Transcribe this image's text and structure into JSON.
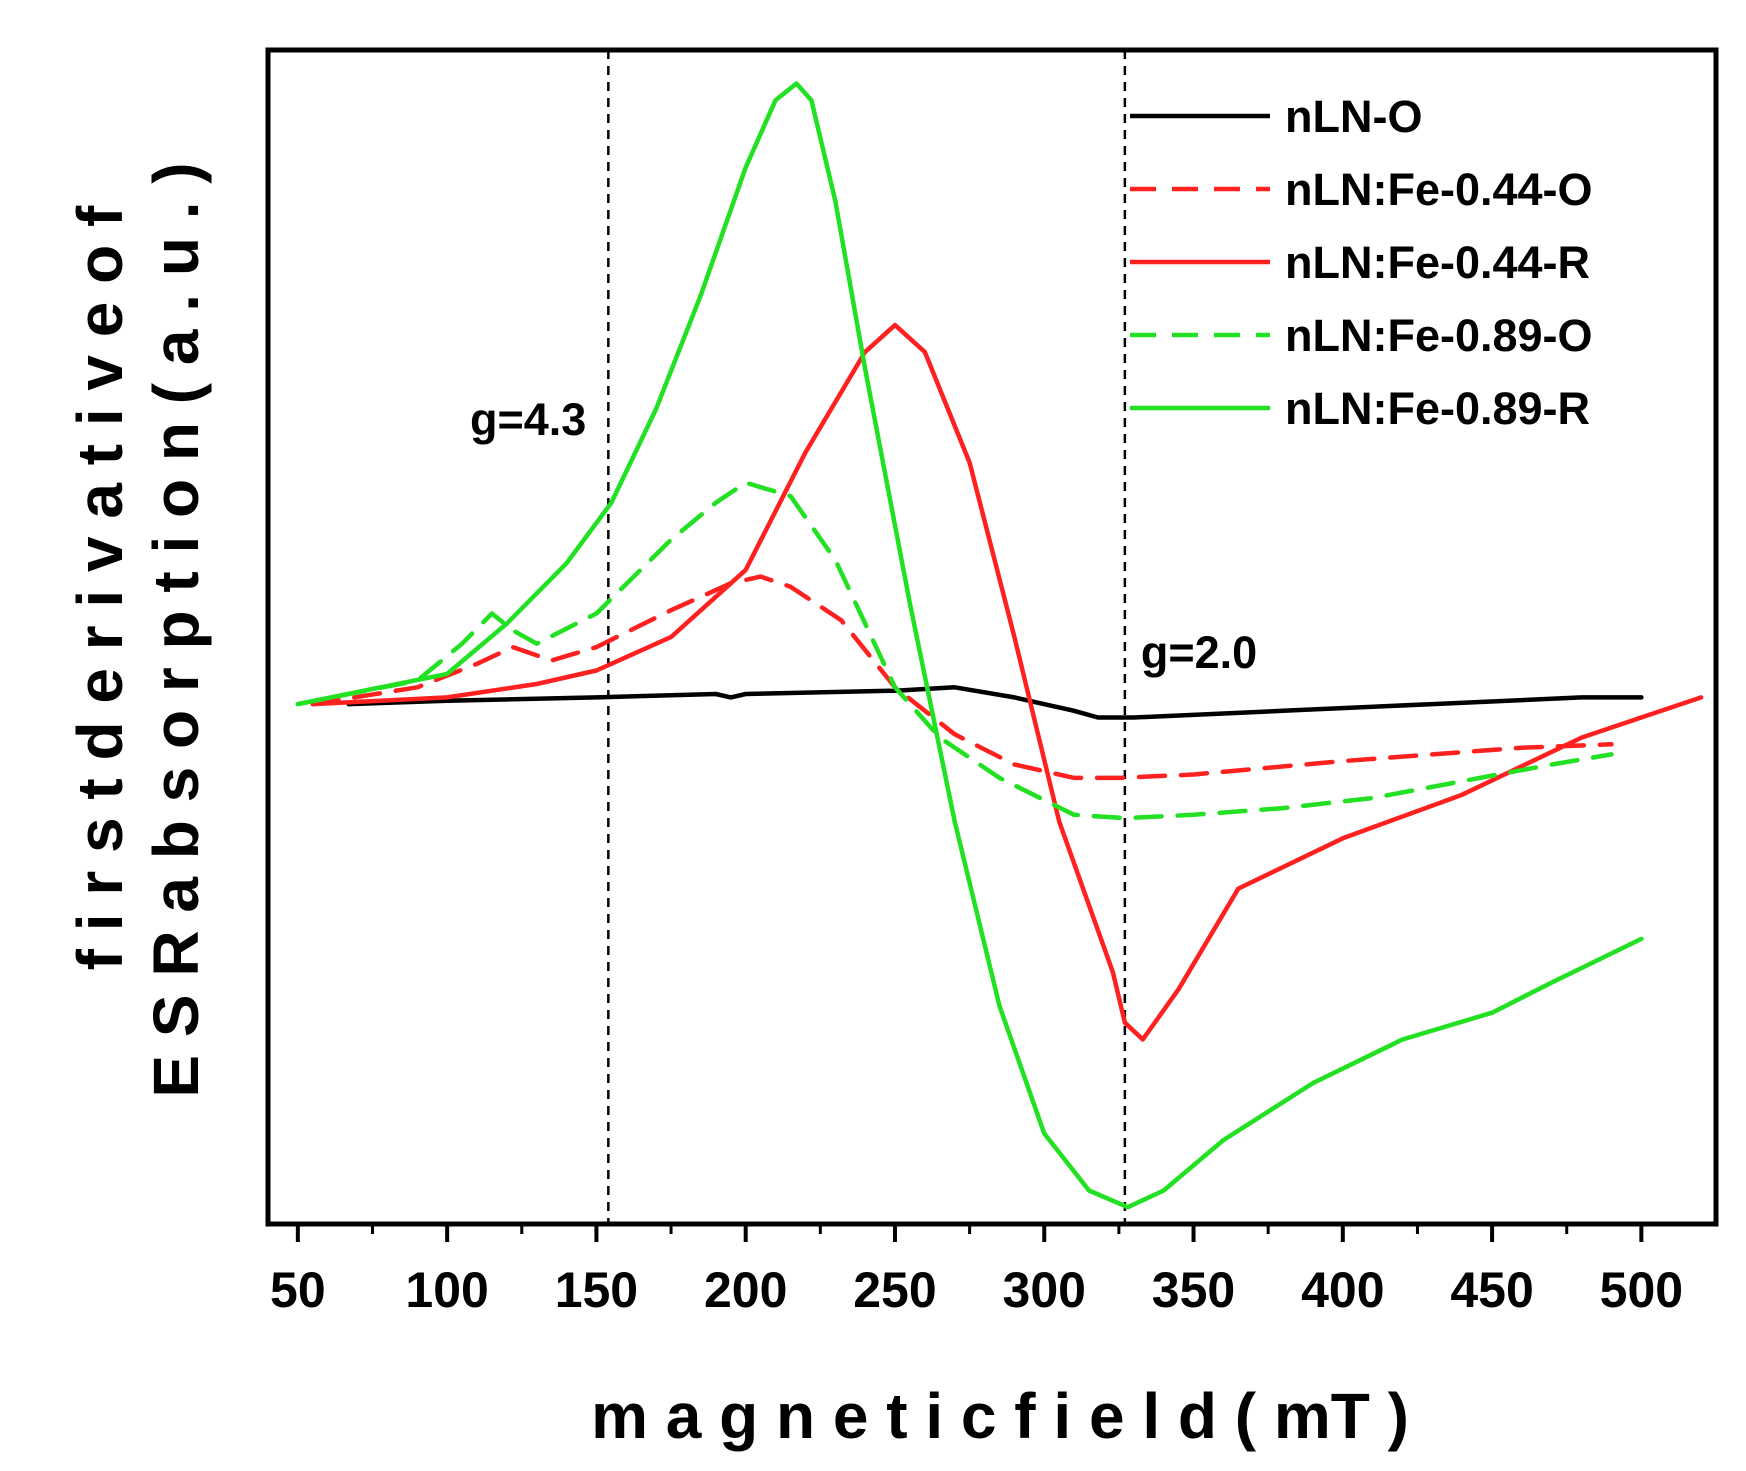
{
  "chart_data": {
    "type": "line",
    "title": "",
    "xlabel": "m a g n e t i c  f i e l d ( mT )",
    "ylabel_line1": "f i r s t  d e r i v a t i v e  o f",
    "ylabel_line2": "E S R  a b s o r p t i o n ( a . u . )",
    "xlim": [
      40,
      525
    ],
    "ylim": [
      -1.55,
      1.95
    ],
    "xticks": [
      50,
      100,
      150,
      200,
      250,
      300,
      350,
      400,
      450,
      500
    ],
    "xtick_labels": [
      "50",
      "100",
      "150",
      "200",
      "250",
      "300",
      "350",
      "400",
      "450",
      "500"
    ],
    "y_tick_labels_shown": false,
    "legend_position": "top-right",
    "reference_lines": [
      {
        "x": 154,
        "label": "g=4.3"
      },
      {
        "x": 327,
        "label": "g=2.0"
      }
    ],
    "series": [
      {
        "name": "nLN-O",
        "color": "#000000",
        "dash": "solid",
        "x": [
          67,
          100,
          150,
          190,
          195,
          200,
          250,
          270,
          290,
          310,
          318,
          330,
          380,
          430,
          480,
          500
        ],
        "y": [
          0.0,
          0.01,
          0.02,
          0.03,
          0.02,
          0.03,
          0.04,
          0.05,
          0.02,
          -0.02,
          -0.04,
          -0.04,
          -0.02,
          0.0,
          0.02,
          0.02
        ]
      },
      {
        "name": "nLN:Fe-0.44-O",
        "color": "#ff2020",
        "dash": "dashed",
        "x": [
          55,
          90,
          110,
          122,
          135,
          150,
          175,
          195,
          205,
          215,
          232,
          250,
          270,
          290,
          310,
          325,
          350,
          375,
          400,
          430,
          460,
          490
        ],
        "y": [
          0.0,
          0.05,
          0.12,
          0.17,
          0.13,
          0.17,
          0.28,
          0.36,
          0.38,
          0.35,
          0.25,
          0.05,
          -0.09,
          -0.18,
          -0.22,
          -0.22,
          -0.21,
          -0.19,
          -0.17,
          -0.15,
          -0.13,
          -0.12
        ]
      },
      {
        "name": "nLN:Fe-0.44-R",
        "color": "#ff2020",
        "dash": "solid",
        "x": [
          55,
          100,
          130,
          150,
          175,
          200,
          220,
          240,
          250,
          260,
          275,
          290,
          305,
          315,
          323,
          327,
          333,
          345,
          365,
          400,
          440,
          480,
          520
        ],
        "y": [
          0.0,
          0.02,
          0.06,
          0.1,
          0.2,
          0.4,
          0.75,
          1.05,
          1.13,
          1.05,
          0.72,
          0.2,
          -0.35,
          -0.6,
          -0.8,
          -0.95,
          -1.0,
          -0.85,
          -0.55,
          -0.4,
          -0.27,
          -0.1,
          0.02
        ]
      },
      {
        "name": "nLN:Fe-0.89-O",
        "color": "#22e022",
        "dash": "dashed",
        "x": [
          50,
          90,
          105,
          115,
          122,
          130,
          150,
          175,
          190,
          200,
          215,
          230,
          250,
          265,
          285,
          310,
          327,
          350,
          380,
          410,
          440,
          470,
          490
        ],
        "y": [
          0.0,
          0.07,
          0.18,
          0.27,
          0.22,
          0.18,
          0.27,
          0.49,
          0.6,
          0.66,
          0.62,
          0.43,
          0.05,
          -0.1,
          -0.22,
          -0.33,
          -0.34,
          -0.33,
          -0.31,
          -0.28,
          -0.23,
          -0.18,
          -0.15
        ]
      },
      {
        "name": "nLN:Fe-0.89-R",
        "color": "#22e022",
        "dash": "solid",
        "x": [
          50,
          100,
          120,
          140,
          155,
          170,
          185,
          200,
          210,
          217,
          222,
          230,
          240,
          255,
          270,
          285,
          300,
          315,
          328,
          340,
          360,
          390,
          420,
          450,
          470,
          500
        ],
        "y": [
          0.0,
          0.09,
          0.24,
          0.42,
          0.6,
          0.88,
          1.22,
          1.6,
          1.8,
          1.85,
          1.8,
          1.5,
          1.0,
          0.3,
          -0.35,
          -0.9,
          -1.28,
          -1.45,
          -1.5,
          -1.45,
          -1.3,
          -1.13,
          -1.0,
          -0.92,
          -0.83,
          -0.7
        ]
      }
    ]
  }
}
